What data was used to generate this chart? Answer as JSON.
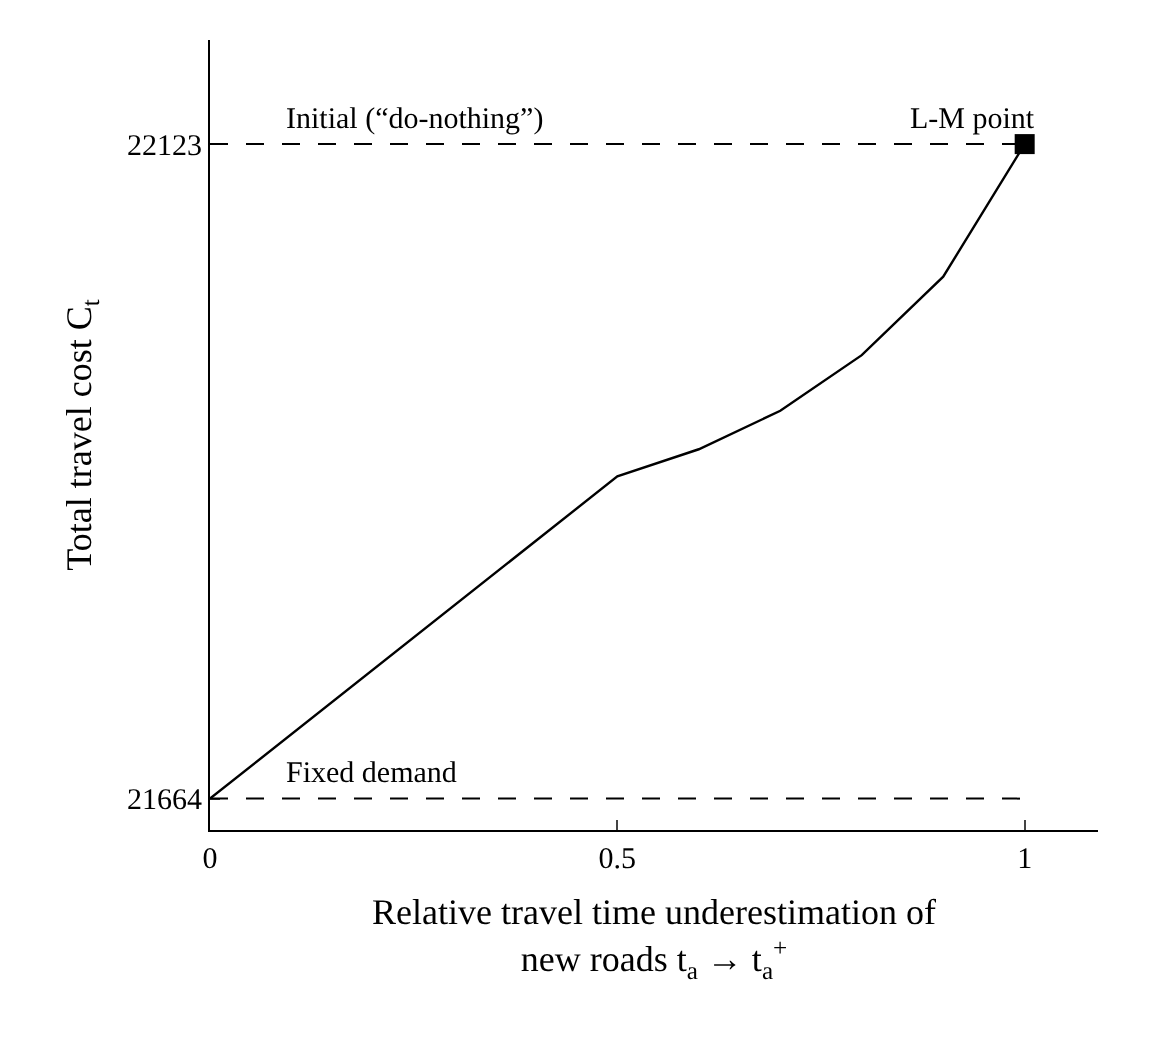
{
  "chart_data": {
    "type": "line",
    "xlabel": "Relative travel time underestimation of\nnew roads t$_{a}$ → t$_{a}$$^{+}$",
    "ylabel": "Total travel cost C$_{t}$",
    "series": [
      {
        "color": "#000000",
        "marker": "none",
        "line_style": "solid",
        "x": [
          0,
          0.5,
          0.6,
          0.7,
          0.8,
          0.9,
          1
        ],
        "values": [
          21664,
          21890,
          21909,
          21936,
          21975,
          22030,
          22123
        ]
      },
      {
        "type": "scatter",
        "color": "#000000",
        "marker": "square",
        "x": [
          1
        ],
        "values": [
          22123
        ]
      }
    ],
    "ref_lines": [
      {
        "axis": "y",
        "value": 22123,
        "label": "Initial (“do-nothing”)",
        "color": "#000000",
        "line_style": "dashed"
      },
      {
        "axis": "y",
        "value": 21664,
        "label": "Fixed demand",
        "color": "#000000",
        "line_style": "dashed"
      }
    ],
    "annotations": [
      {
        "text": "L-M point",
        "x": 1,
        "y": 22123
      }
    ],
    "xlim": [
      0,
      1.09
    ],
    "ylim": [
      21642,
      22196
    ],
    "xticks": [
      0,
      0.5,
      1
    ],
    "yticks": [
      21664,
      22123
    ],
    "grid": false
  }
}
